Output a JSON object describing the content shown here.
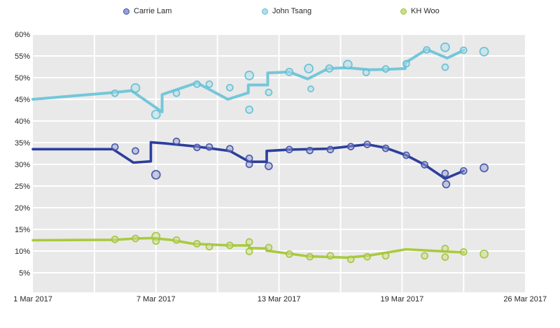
{
  "chart_data": {
    "type": "line",
    "title": "",
    "xlabel": "",
    "ylabel": "",
    "plot_bg": "#e9e9e9",
    "grid_color": "#ffffff",
    "x_axis": {
      "unit": "date",
      "tick_labels": [
        "1 Mar 2017",
        "7 Mar 2017",
        "13 Mar 2017",
        "19 Mar 2017",
        "26 Mar 2017"
      ],
      "tick_days_from_start": [
        0,
        6,
        12,
        18,
        24
      ],
      "minor_gridline_every_days": 3,
      "range_days": [
        0,
        24
      ]
    },
    "y_axis": {
      "unit": "percent",
      "tick_labels": [
        "5%",
        "10%",
        "15%",
        "20%",
        "25%",
        "30%",
        "35%",
        "40%",
        "45%",
        "50%",
        "55%",
        "60%"
      ],
      "ticks": [
        5,
        10,
        15,
        20,
        25,
        30,
        35,
        40,
        45,
        50,
        55,
        60
      ],
      "range": [
        0.5,
        60
      ]
    },
    "series": [
      {
        "name": "Carrie Lam",
        "line_color": "#2c3e9d",
        "point_fill": "#9aa0d6",
        "point_stroke": "#3d4fa5",
        "trend_line": [
          [
            0,
            33.5
          ],
          [
            3.9,
            33.5
          ],
          [
            4.9,
            30.4
          ],
          [
            5.75,
            30.7
          ],
          [
            5.75,
            35.1
          ],
          [
            6.5,
            34.8
          ],
          [
            8,
            34.1
          ],
          [
            9.6,
            33.1
          ],
          [
            10.55,
            30.6
          ],
          [
            11.4,
            30.6
          ],
          [
            11.4,
            33.1
          ],
          [
            12.5,
            33.4
          ],
          [
            14.4,
            33.6
          ],
          [
            16.3,
            34.6
          ],
          [
            17.2,
            33.8
          ],
          [
            18.2,
            32.1
          ],
          [
            19.1,
            29.9
          ],
          [
            20.1,
            26.7
          ],
          [
            21,
            28.5
          ]
        ],
        "poll_points": [
          [
            4,
            34.0
          ],
          [
            5,
            33.1
          ],
          [
            6,
            27.6,
            6
          ],
          [
            7,
            35.3
          ],
          [
            8,
            33.9
          ],
          [
            8.6,
            34.0
          ],
          [
            9.6,
            33.6
          ],
          [
            10.55,
            31.4
          ],
          [
            10.55,
            30.0
          ],
          [
            11.5,
            29.6,
            5
          ],
          [
            12.5,
            33.4
          ],
          [
            13.5,
            33.2
          ],
          [
            14.5,
            33.4
          ],
          [
            15.5,
            34.1
          ],
          [
            16.3,
            34.6
          ],
          [
            17.2,
            33.7
          ],
          [
            18.2,
            32.1
          ],
          [
            19.1,
            29.9
          ],
          [
            20.1,
            27.9
          ],
          [
            20.15,
            25.4,
            5
          ],
          [
            21,
            28.5
          ],
          [
            22,
            29.2,
            5.5
          ]
        ]
      },
      {
        "name": "John Tsang",
        "line_color": "#74c7d9",
        "point_fill": "#aee0ea",
        "point_stroke": "#5fbcd1",
        "trend_line": [
          [
            0,
            45.0
          ],
          [
            4,
            46.6
          ],
          [
            4.8,
            47.0
          ],
          [
            6.3,
            42.1
          ],
          [
            6.3,
            46.1
          ],
          [
            8,
            48.8
          ],
          [
            9.5,
            45.0
          ],
          [
            10.5,
            46.5
          ],
          [
            10.5,
            48.3
          ],
          [
            11.45,
            48.3
          ],
          [
            11.45,
            51.1
          ],
          [
            12.5,
            51.3
          ],
          [
            13.4,
            49.7
          ],
          [
            14.4,
            52.1
          ],
          [
            15.3,
            52.3
          ],
          [
            16.4,
            51.8
          ],
          [
            17.2,
            51.9
          ],
          [
            18.15,
            52.1
          ],
          [
            18.15,
            53.4
          ],
          [
            19.2,
            56.5
          ],
          [
            20.2,
            54.5
          ],
          [
            21,
            56.3
          ]
        ],
        "poll_points": [
          [
            4,
            46.4
          ],
          [
            5,
            47.6,
            6
          ],
          [
            6,
            41.5,
            6
          ],
          [
            7,
            46.4
          ],
          [
            8,
            48.5
          ],
          [
            8.6,
            48.5
          ],
          [
            9.6,
            47.7
          ],
          [
            10.55,
            50.5,
            6
          ],
          [
            10.55,
            42.6,
            5
          ],
          [
            11.5,
            46.6
          ],
          [
            12.5,
            51.3,
            5
          ],
          [
            13.45,
            52.1,
            6
          ],
          [
            13.55,
            47.4,
            4
          ],
          [
            14.45,
            52.1,
            5
          ],
          [
            15.35,
            53.0,
            6
          ],
          [
            16.25,
            51.2,
            4.5
          ],
          [
            17.2,
            52.0
          ],
          [
            18.2,
            53.2
          ],
          [
            19.2,
            56.4
          ],
          [
            20.1,
            57.0,
            6
          ],
          [
            20.1,
            52.4
          ],
          [
            21,
            56.3
          ],
          [
            22,
            56.0,
            6
          ]
        ]
      },
      {
        "name": "KH Woo",
        "line_color": "#aaca3f",
        "point_fill": "#cbde88",
        "point_stroke": "#a0c23a",
        "trend_line": [
          [
            0,
            12.5
          ],
          [
            4,
            12.6
          ],
          [
            5,
            12.9
          ],
          [
            5.8,
            13.0
          ],
          [
            6.7,
            12.6
          ],
          [
            7.8,
            11.7
          ],
          [
            9.6,
            11.3
          ],
          [
            10.55,
            11.3
          ],
          [
            10.55,
            10.7
          ],
          [
            11.4,
            10.6
          ],
          [
            11.4,
            10.1
          ],
          [
            12.5,
            9.4
          ],
          [
            13.4,
            8.8
          ],
          [
            15.3,
            8.5
          ],
          [
            16.3,
            8.9
          ],
          [
            18.2,
            10.4
          ],
          [
            20.1,
            9.9
          ],
          [
            21,
            9.7
          ]
        ],
        "poll_points": [
          [
            4,
            12.7
          ],
          [
            5,
            12.9
          ],
          [
            6,
            13.4,
            5.5
          ],
          [
            6,
            12.3
          ],
          [
            7,
            12.55
          ],
          [
            8,
            11.7
          ],
          [
            8.6,
            11.0
          ],
          [
            9.6,
            11.3
          ],
          [
            10.55,
            12.1
          ],
          [
            10.55,
            9.9
          ],
          [
            11.5,
            10.8
          ],
          [
            12.5,
            9.3
          ],
          [
            13.5,
            8.7
          ],
          [
            14.5,
            8.9
          ],
          [
            15.5,
            8.1
          ],
          [
            16.3,
            8.7
          ],
          [
            17.2,
            8.9
          ],
          [
            19.1,
            8.9
          ],
          [
            20.1,
            10.6
          ],
          [
            20.1,
            8.6
          ],
          [
            21,
            9.8
          ],
          [
            22,
            9.3,
            5.5
          ]
        ]
      }
    ]
  }
}
